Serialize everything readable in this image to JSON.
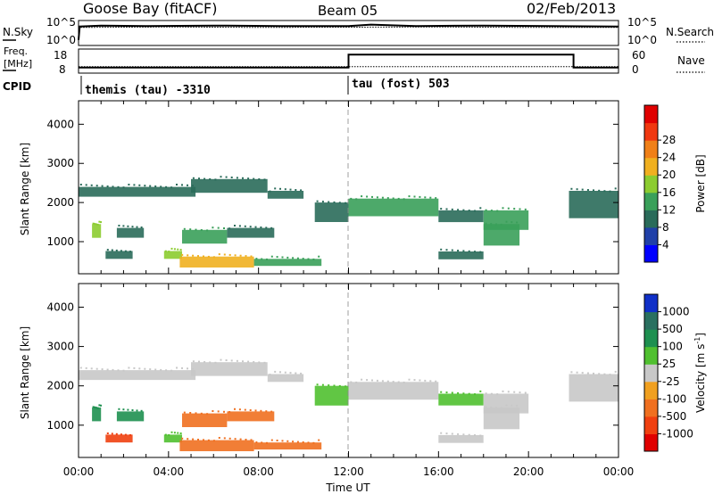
{
  "header": {
    "site": "Goose Bay (fitACF)",
    "beam": "Beam 05",
    "date": "02/Feb/2013"
  },
  "noise_panel": {
    "left_label": "N.Sky",
    "left_ticks": [
      "10^5",
      "10^0"
    ],
    "right_ticks": [
      "10^5",
      "10^0"
    ],
    "right_label": "N.Search"
  },
  "freq_panel": {
    "left_label_1": "Freq.",
    "left_label_2": "[MHz]",
    "left_ticks": [
      "18",
      "8"
    ],
    "right_ticks": [
      "60",
      "0"
    ],
    "right_label": "Nave"
  },
  "cpid": {
    "label": "CPID",
    "segments": [
      {
        "text": "themis (tau) -3310",
        "start_hour": 0
      },
      {
        "text": "tau (fost) 503",
        "start_hour": 12
      }
    ]
  },
  "axes": {
    "ylabel": "Slant Range [km]",
    "xlabel": "Time UT",
    "x_ticks": [
      "00:00",
      "04:00",
      "08:00",
      "12:00",
      "16:00",
      "20:00",
      "00:00"
    ],
    "y_ticks": [
      "1000",
      "2000",
      "3000",
      "4000"
    ]
  },
  "power_scale": {
    "label": "Power [dB]",
    "ticks": [
      "4",
      "8",
      "12",
      "16",
      "20",
      "24",
      "28"
    ],
    "colors": [
      "#0000ff",
      "#2040a8",
      "#2a6b5a",
      "#3aa05a",
      "#8ccc30",
      "#f0b020",
      "#f08018",
      "#f03810",
      "#e00000"
    ]
  },
  "velocity_scale": {
    "label": "Velocity [m s",
    "label_sup": "-1",
    "label_end": "]",
    "ticks": [
      "1000",
      "500",
      "100",
      "25",
      "-25",
      "-100",
      "-500",
      "-1000"
    ],
    "colors": [
      "#1030c8",
      "#2a7060",
      "#1e9050",
      "#50c030",
      "#c8c8c8",
      "#f0a020",
      "#f07020",
      "#f04010",
      "#e00000"
    ]
  },
  "chart_data": [
    {
      "type": "line",
      "title": "N.Sky / N.Search",
      "x_range_hours": [
        0,
        24
      ],
      "series": [
        {
          "name": "N.Sky",
          "points": [
            [
              0.0,
              0.2
            ],
            [
              0.05,
              0.78
            ],
            [
              1.0,
              0.82
            ],
            [
              3.0,
              0.8
            ],
            [
              6.0,
              0.82
            ],
            [
              9.0,
              0.8
            ],
            [
              12.0,
              0.8
            ],
            [
              13.0,
              0.86
            ],
            [
              15.0,
              0.8
            ],
            [
              18.0,
              0.82
            ],
            [
              21.0,
              0.8
            ],
            [
              24.0,
              0.78
            ]
          ]
        },
        {
          "name": "N.Search",
          "points": [
            [
              0.0,
              0.2
            ],
            [
              0.05,
              0.74
            ],
            [
              4.0,
              0.76
            ],
            [
              8.0,
              0.74
            ],
            [
              12.0,
              0.75
            ],
            [
              16.0,
              0.76
            ],
            [
              20.0,
              0.74
            ],
            [
              24.0,
              0.74
            ]
          ]
        }
      ]
    },
    {
      "type": "line",
      "title": "Freq. / Nave",
      "x_range_hours": [
        0,
        24
      ],
      "series": [
        {
          "name": "Freq.",
          "points": [
            [
              0.0,
              10.1
            ],
            [
              12.0,
              10.1
            ],
            [
              12.0,
              15.9
            ],
            [
              22.0,
              15.9
            ],
            [
              22.0,
              10.1
            ],
            [
              24.0,
              10.1
            ]
          ]
        },
        {
          "name": "Nave",
          "points": [
            [
              0.0,
              15
            ],
            [
              24.0,
              15
            ]
          ]
        }
      ]
    },
    {
      "type": "heatmap",
      "title": "Power [dB]",
      "x_unit": "hours UT",
      "y_unit": "Slant Range [km]",
      "xlim": [
        0,
        24
      ],
      "ylim": [
        180,
        4600
      ],
      "bands": [
        {
          "x0": 0.0,
          "x1": 5.2,
          "y0": 2150,
          "y1": 2400,
          "power": 8
        },
        {
          "x0": 5.0,
          "x1": 8.4,
          "y0": 2250,
          "y1": 2600,
          "power": 9
        },
        {
          "x0": 8.4,
          "x1": 10.0,
          "y0": 2100,
          "y1": 2300,
          "power": 8
        },
        {
          "x0": 10.5,
          "x1": 12.0,
          "y0": 1500,
          "y1": 2000,
          "power": 11
        },
        {
          "x0": 12.0,
          "x1": 16.0,
          "y0": 1650,
          "y1": 2100,
          "power": 14
        },
        {
          "x0": 16.0,
          "x1": 18.0,
          "y0": 1500,
          "y1": 1800,
          "power": 10
        },
        {
          "x0": 18.0,
          "x1": 20.0,
          "y0": 1300,
          "y1": 1800,
          "power": 13
        },
        {
          "x0": 21.8,
          "x1": 24.0,
          "y0": 1600,
          "y1": 2300,
          "power": 10
        },
        {
          "x0": 0.6,
          "x1": 1.0,
          "y0": 1100,
          "y1": 1450,
          "power": 18
        },
        {
          "x0": 1.7,
          "x1": 2.9,
          "y0": 1100,
          "y1": 1350,
          "power": 10
        },
        {
          "x0": 4.6,
          "x1": 6.6,
          "y0": 950,
          "y1": 1300,
          "power": 15
        },
        {
          "x0": 6.6,
          "x1": 8.7,
          "y0": 1100,
          "y1": 1350,
          "power": 10
        },
        {
          "x0": 1.2,
          "x1": 2.4,
          "y0": 560,
          "y1": 760,
          "power": 8
        },
        {
          "x0": 3.8,
          "x1": 4.6,
          "y0": 560,
          "y1": 760,
          "power": 16
        },
        {
          "x0": 4.5,
          "x1": 7.8,
          "y0": 340,
          "y1": 620,
          "power": 20
        },
        {
          "x0": 7.8,
          "x1": 10.8,
          "y0": 380,
          "y1": 560,
          "power": 12
        },
        {
          "x0": 16.0,
          "x1": 18.0,
          "y0": 550,
          "y1": 750,
          "power": 10
        },
        {
          "x0": 18.0,
          "x1": 19.6,
          "y0": 900,
          "y1": 1450,
          "power": 12
        }
      ]
    },
    {
      "type": "heatmap",
      "title": "Velocity [m s-1]",
      "x_unit": "hours UT",
      "y_unit": "Slant Range [km]",
      "xlim": [
        0,
        24
      ],
      "ylim": [
        180,
        4600
      ],
      "bands": [
        {
          "x0": 0.0,
          "x1": 5.2,
          "y0": 2150,
          "y1": 2400,
          "velocity": 0
        },
        {
          "x0": 5.0,
          "x1": 8.4,
          "y0": 2250,
          "y1": 2600,
          "velocity": 0
        },
        {
          "x0": 8.4,
          "x1": 10.0,
          "y0": 2100,
          "y1": 2300,
          "velocity": 0
        },
        {
          "x0": 10.5,
          "x1": 12.0,
          "y0": 1500,
          "y1": 2000,
          "velocity": 40
        },
        {
          "x0": 12.0,
          "x1": 16.0,
          "y0": 1650,
          "y1": 2100,
          "velocity": 0
        },
        {
          "x0": 16.0,
          "x1": 18.0,
          "y0": 1500,
          "y1": 1800,
          "velocity": 60
        },
        {
          "x0": 18.0,
          "x1": 20.0,
          "y0": 1300,
          "y1": 1800,
          "velocity": 0
        },
        {
          "x0": 21.8,
          "x1": 24.0,
          "y0": 1600,
          "y1": 2300,
          "velocity": 0
        },
        {
          "x0": 0.6,
          "x1": 1.0,
          "y0": 1100,
          "y1": 1450,
          "velocity": 200
        },
        {
          "x0": 1.7,
          "x1": 2.9,
          "y0": 1100,
          "y1": 1350,
          "velocity": 150
        },
        {
          "x0": 4.6,
          "x1": 6.6,
          "y0": 950,
          "y1": 1300,
          "velocity": -200
        },
        {
          "x0": 6.6,
          "x1": 8.7,
          "y0": 1100,
          "y1": 1350,
          "velocity": -150
        },
        {
          "x0": 1.2,
          "x1": 2.4,
          "y0": 560,
          "y1": 760,
          "velocity": -300
        },
        {
          "x0": 3.8,
          "x1": 4.6,
          "y0": 560,
          "y1": 760,
          "velocity": 60
        },
        {
          "x0": 4.5,
          "x1": 7.8,
          "y0": 340,
          "y1": 620,
          "velocity": -80
        },
        {
          "x0": 7.8,
          "x1": 10.8,
          "y0": 380,
          "y1": 560,
          "velocity": -60
        },
        {
          "x0": 16.0,
          "x1": 18.0,
          "y0": 550,
          "y1": 750,
          "velocity": 0
        },
        {
          "x0": 18.0,
          "x1": 19.6,
          "y0": 900,
          "y1": 1450,
          "velocity": 0
        }
      ]
    }
  ]
}
